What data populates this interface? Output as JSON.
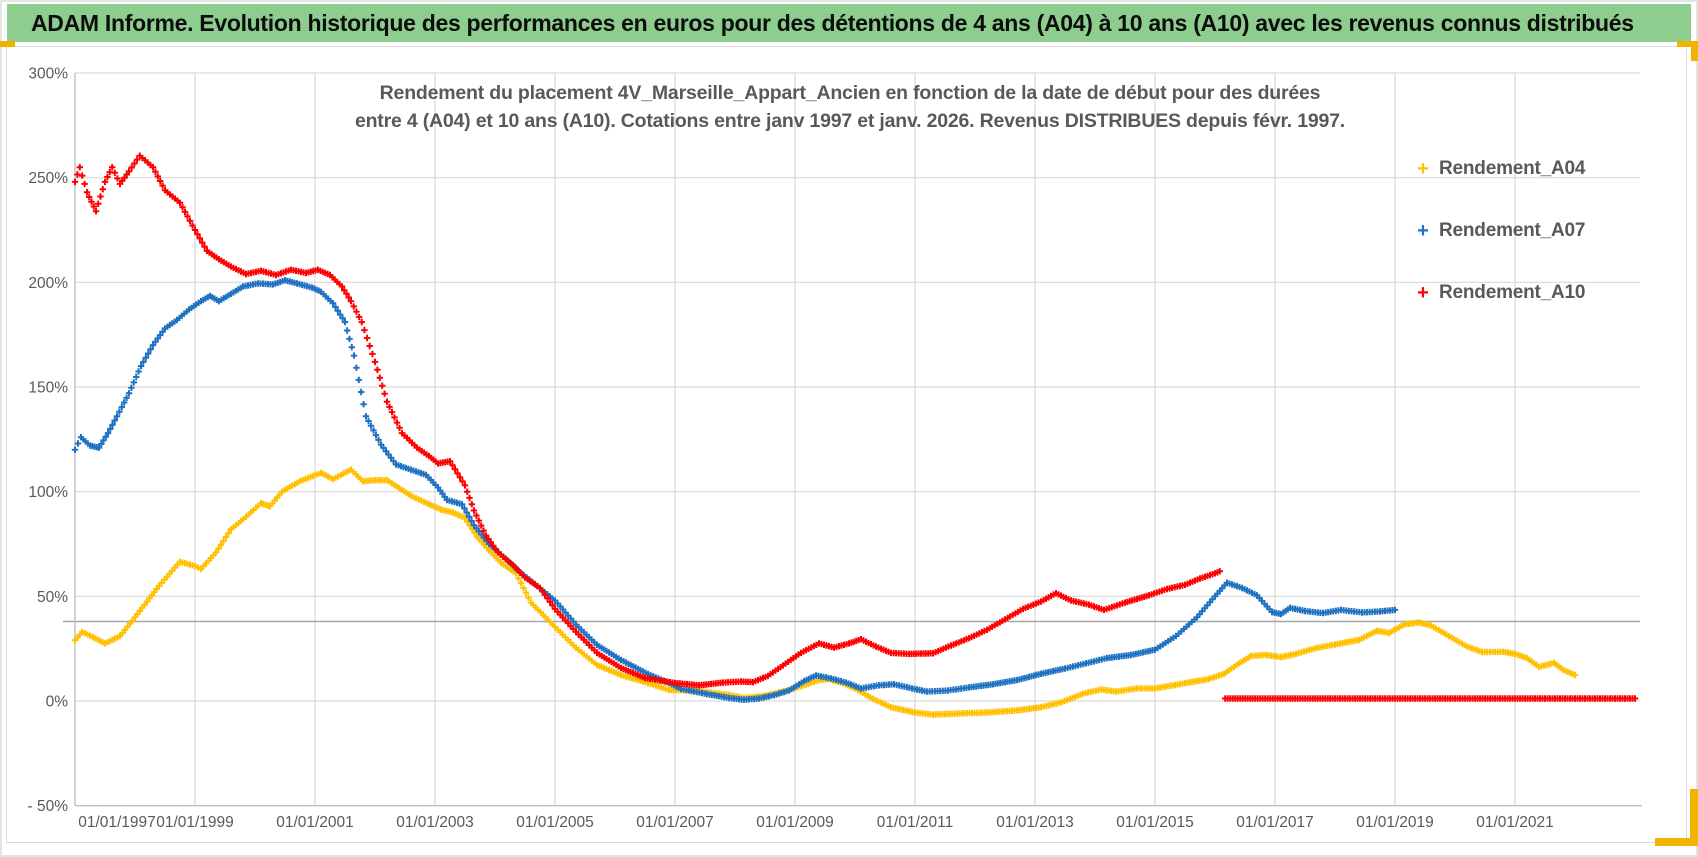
{
  "header": {
    "title": "ADAM Informe. Evolution historique des performances en euros pour des détentions de 4 ans (A04) à 10 ans (A10) avec les revenus connus distribués"
  },
  "chart_data": {
    "type": "scatter",
    "marker": "plus",
    "title_line1": "Rendement du placement 4V_Marseille_Appart_Ancien en fonction de la date de début pour des durées",
    "title_line2": "entre 4 (A04) et 10 ans (A10). Cotations entre janv 1997 et janv. 2026. Revenus DISTRIBUES depuis févr. 1997.",
    "x_axis": {
      "tick_labels": [
        "01/01/1997",
        "01/01/1999",
        "01/01/2001",
        "01/01/2003",
        "01/01/2005",
        "01/01/2007",
        "01/01/2009",
        "01/01/2011",
        "01/01/2013",
        "01/01/2015",
        "01/01/2017",
        "01/01/2019",
        "01/01/2021"
      ],
      "tick_years": [
        1997,
        1999,
        2001,
        2003,
        2005,
        2007,
        2009,
        2011,
        2013,
        2015,
        2017,
        2019,
        2021
      ],
      "min_year": 1997,
      "max_year": 2023
    },
    "y_axis": {
      "tick_labels": [
        "300%",
        "250%",
        "200%",
        "150%",
        "100%",
        "50%",
        "0%",
        "- 50%"
      ],
      "tick_values": [
        300,
        250,
        200,
        150,
        100,
        50,
        0,
        -50
      ],
      "min": -50,
      "max": 300,
      "unit": "%"
    },
    "reference_line": {
      "value": 38
    },
    "grid": true,
    "legend_position": "right",
    "series": [
      {
        "name": "Rendement_A04",
        "color": "#FFC000",
        "segments": [
          [
            [
              1997.0,
              29
            ],
            [
              1997.12,
              33
            ],
            [
              1997.3,
              30.5
            ],
            [
              1997.5,
              27.5
            ],
            [
              1997.75,
              31
            ],
            [
              1998.0,
              40
            ],
            [
              1998.4,
              55
            ],
            [
              1998.75,
              66.5
            ],
            [
              1999.0,
              64.5
            ],
            [
              1999.1,
              63
            ],
            [
              1999.35,
              71
            ],
            [
              1999.6,
              82
            ],
            [
              1999.85,
              88
            ],
            [
              2000.1,
              94.5
            ],
            [
              2000.25,
              93
            ],
            [
              2000.45,
              100
            ],
            [
              2000.75,
              105
            ],
            [
              2001.1,
              109
            ],
            [
              2001.3,
              106
            ],
            [
              2001.6,
              110.5
            ],
            [
              2001.8,
              105
            ],
            [
              2002.0,
              105.5
            ],
            [
              2002.2,
              105.5
            ],
            [
              2002.6,
              98
            ],
            [
              2002.9,
              94
            ],
            [
              2003.1,
              91.5
            ],
            [
              2003.3,
              90
            ],
            [
              2003.5,
              87.5
            ],
            [
              2003.7,
              78.5
            ],
            [
              2003.9,
              72
            ],
            [
              2004.1,
              66
            ],
            [
              2004.35,
              61
            ],
            [
              2004.6,
              47
            ],
            [
              2005.0,
              35.4
            ],
            [
              2005.35,
              25.4
            ],
            [
              2005.7,
              17.2
            ],
            [
              2006.1,
              12.4
            ],
            [
              2006.55,
              8.6
            ],
            [
              2006.9,
              5.3
            ],
            [
              2007.3,
              5
            ],
            [
              2007.6,
              4
            ],
            [
              2007.9,
              2.9
            ],
            [
              2008.15,
              1.5
            ],
            [
              2008.5,
              2.5
            ],
            [
              2008.8,
              4.5
            ],
            [
              2009.1,
              7
            ],
            [
              2009.4,
              10
            ],
            [
              2009.55,
              10.5
            ],
            [
              2009.8,
              8.5
            ],
            [
              2010.0,
              6
            ],
            [
              2010.3,
              1
            ],
            [
              2010.6,
              -3
            ],
            [
              2011.0,
              -5.5
            ],
            [
              2011.3,
              -6.5
            ],
            [
              2011.7,
              -6
            ],
            [
              2012.2,
              -5.5
            ],
            [
              2012.7,
              -4.5
            ],
            [
              2013.1,
              -3
            ],
            [
              2013.45,
              -0.5
            ],
            [
              2013.8,
              3.5
            ],
            [
              2014.1,
              5.5
            ],
            [
              2014.35,
              4.5
            ],
            [
              2014.7,
              6
            ],
            [
              2015.0,
              6
            ],
            [
              2015.5,
              8.5
            ],
            [
              2015.9,
              10.5
            ],
            [
              2016.15,
              13
            ],
            [
              2016.4,
              18
            ],
            [
              2016.6,
              21.5
            ],
            [
              2016.85,
              22
            ],
            [
              2017.1,
              21
            ],
            [
              2017.35,
              22.5
            ],
            [
              2017.7,
              25.4
            ],
            [
              2018.0,
              27
            ],
            [
              2018.4,
              29.2
            ],
            [
              2018.7,
              33.5
            ],
            [
              2018.9,
              32.5
            ],
            [
              2019.15,
              36.5
            ],
            [
              2019.4,
              37.5
            ],
            [
              2019.6,
              36
            ],
            [
              2019.9,
              31
            ],
            [
              2020.2,
              26
            ],
            [
              2020.45,
              23.4
            ],
            [
              2020.8,
              23.5
            ],
            [
              2021.0,
              22.5
            ],
            [
              2021.2,
              20.5
            ],
            [
              2021.4,
              16.3
            ],
            [
              2021.65,
              18.2
            ],
            [
              2021.8,
              15
            ],
            [
              2022.0,
              12.4
            ]
          ]
        ]
      },
      {
        "name": "Rendement_A07",
        "color": "#1F72C2",
        "segments": [
          [
            [
              1997.0,
              120
            ],
            [
              1997.1,
              126
            ],
            [
              1997.25,
              122
            ],
            [
              1997.4,
              121
            ],
            [
              1997.55,
              128
            ],
            [
              1997.7,
              136
            ],
            [
              1997.9,
              147
            ],
            [
              1998.1,
              160
            ],
            [
              1998.3,
              170
            ],
            [
              1998.5,
              178
            ],
            [
              1998.7,
              182
            ],
            [
              1998.9,
              187
            ],
            [
              1999.1,
              191
            ],
            [
              1999.25,
              193.5
            ],
            [
              1999.4,
              191
            ],
            [
              1999.6,
              194.5
            ],
            [
              1999.8,
              198
            ],
            [
              2000.05,
              199.5
            ],
            [
              2000.3,
              199
            ],
            [
              2000.5,
              201
            ],
            [
              2000.7,
              199.5
            ],
            [
              2000.95,
              197.5
            ],
            [
              2001.1,
              195.5
            ],
            [
              2001.3,
              190
            ],
            [
              2001.5,
              181
            ],
            [
              2001.65,
              165
            ],
            [
              2001.85,
              136
            ],
            [
              2002.1,
              122.5
            ],
            [
              2002.35,
              113
            ],
            [
              2002.6,
              110.5
            ],
            [
              2002.85,
              108
            ],
            [
              2003.05,
              102
            ],
            [
              2003.2,
              96
            ],
            [
              2003.45,
              94
            ],
            [
              2003.65,
              84
            ],
            [
              2003.9,
              75
            ],
            [
              2004.1,
              70
            ],
            [
              2004.4,
              62
            ],
            [
              2004.7,
              55
            ],
            [
              2005.0,
              48
            ],
            [
              2005.35,
              36.5
            ],
            [
              2005.7,
              26.8
            ],
            [
              2006.1,
              19.6
            ],
            [
              2006.55,
              12.9
            ],
            [
              2006.9,
              8.6
            ],
            [
              2007.1,
              5.8
            ],
            [
              2007.45,
              3.8
            ],
            [
              2007.9,
              1.4
            ],
            [
              2008.15,
              0.6
            ],
            [
              2008.4,
              1.2
            ],
            [
              2008.65,
              2.8
            ],
            [
              2008.9,
              5
            ],
            [
              2009.15,
              9.5
            ],
            [
              2009.35,
              12.2
            ],
            [
              2009.6,
              10.8
            ],
            [
              2009.85,
              8.8
            ],
            [
              2010.1,
              6
            ],
            [
              2010.4,
              7.5
            ],
            [
              2010.65,
              8
            ],
            [
              2010.95,
              6
            ],
            [
              2011.2,
              4.5
            ],
            [
              2011.55,
              5
            ],
            [
              2011.9,
              6.5
            ],
            [
              2012.3,
              8
            ],
            [
              2012.7,
              10
            ],
            [
              2013.1,
              13
            ],
            [
              2013.5,
              15.5
            ],
            [
              2013.85,
              18
            ],
            [
              2014.2,
              20.5
            ],
            [
              2014.6,
              22
            ],
            [
              2015.0,
              24.5
            ],
            [
              2015.35,
              31
            ],
            [
              2015.7,
              40
            ],
            [
              2016.0,
              50
            ],
            [
              2016.2,
              56.5
            ],
            [
              2016.45,
              54
            ],
            [
              2016.7,
              50.5
            ],
            [
              2016.95,
              42.5
            ],
            [
              2017.1,
              41.5
            ],
            [
              2017.25,
              44.5
            ],
            [
              2017.5,
              43
            ],
            [
              2017.8,
              42
            ],
            [
              2018.1,
              43.5
            ],
            [
              2018.45,
              42.3
            ],
            [
              2018.75,
              42.8
            ],
            [
              2019.0,
              43.5
            ]
          ]
        ]
      },
      {
        "name": "Rendement_A10",
        "color": "#FF0000",
        "segments": [
          [
            [
              1997.0,
              248
            ],
            [
              1997.08,
              255
            ],
            [
              1997.2,
              243
            ],
            [
              1997.35,
              234
            ],
            [
              1997.5,
              248
            ],
            [
              1997.62,
              255
            ],
            [
              1997.75,
              247
            ],
            [
              1997.9,
              253
            ],
            [
              1998.08,
              260.5
            ],
            [
              1998.3,
              255
            ],
            [
              1998.5,
              244
            ],
            [
              1998.75,
              238
            ],
            [
              1999.0,
              225
            ],
            [
              1999.2,
              215
            ],
            [
              1999.4,
              211
            ],
            [
              1999.6,
              207.5
            ],
            [
              1999.85,
              204
            ],
            [
              2000.1,
              205.5
            ],
            [
              2000.35,
              203.5
            ],
            [
              2000.6,
              206
            ],
            [
              2000.85,
              204.5
            ],
            [
              2001.05,
              206
            ],
            [
              2001.25,
              203.5
            ],
            [
              2001.45,
              198
            ],
            [
              2001.6,
              191
            ],
            [
              2001.78,
              181
            ],
            [
              2002.0,
              162
            ],
            [
              2002.2,
              143
            ],
            [
              2002.45,
              128
            ],
            [
              2002.7,
              121
            ],
            [
              2002.9,
              117
            ],
            [
              2003.05,
              113.5
            ],
            [
              2003.25,
              114.5
            ],
            [
              2003.5,
              103
            ],
            [
              2003.65,
              91
            ],
            [
              2003.85,
              79
            ],
            [
              2004.05,
              71
            ],
            [
              2004.3,
              65
            ],
            [
              2004.5,
              59
            ],
            [
              2004.75,
              54
            ],
            [
              2005.0,
              44
            ],
            [
              2005.35,
              33
            ],
            [
              2005.7,
              23
            ],
            [
              2006.1,
              15.8
            ],
            [
              2006.5,
              11
            ],
            [
              2007.0,
              8.6
            ],
            [
              2007.4,
              7.5
            ],
            [
              2007.8,
              8.8
            ],
            [
              2008.1,
              9.3
            ],
            [
              2008.3,
              9
            ],
            [
              2008.55,
              12
            ],
            [
              2008.8,
              17
            ],
            [
              2009.1,
              23
            ],
            [
              2009.4,
              27.5
            ],
            [
              2009.65,
              25.5
            ],
            [
              2009.9,
              27.5
            ],
            [
              2010.1,
              29.5
            ],
            [
              2010.35,
              26
            ],
            [
              2010.6,
              23
            ],
            [
              2010.9,
              22.5
            ],
            [
              2011.3,
              22.8
            ],
            [
              2011.6,
              26.5
            ],
            [
              2011.9,
              30
            ],
            [
              2012.2,
              34
            ],
            [
              2012.5,
              39
            ],
            [
              2012.8,
              44
            ],
            [
              2013.1,
              47.5
            ],
            [
              2013.35,
              51.5
            ],
            [
              2013.6,
              48
            ],
            [
              2013.9,
              46
            ],
            [
              2014.15,
              43.5
            ],
            [
              2014.5,
              47
            ],
            [
              2014.9,
              50.5
            ],
            [
              2015.2,
              53.5
            ],
            [
              2015.5,
              55.5
            ],
            [
              2015.75,
              58.5
            ],
            [
              2016.0,
              61
            ],
            [
              2016.08,
              62
            ]
          ],
          [
            [
              2016.17,
              1.2
            ],
            [
              2023.0,
              1.2
            ]
          ]
        ]
      }
    ]
  },
  "colors": {
    "header_green": "#8DCD8D",
    "selection_yellow": "#F0B400",
    "gridline": "#D9D9D9",
    "axis_line": "#BFBFBF",
    "reference_line": "#A6A6A6",
    "text_gray": "#595959"
  }
}
